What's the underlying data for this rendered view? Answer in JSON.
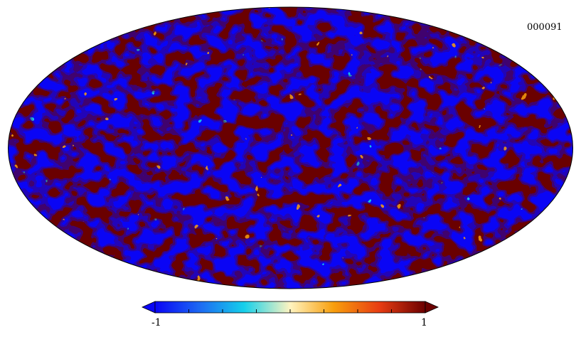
{
  "map": {
    "id_label": "000091",
    "projection": "mollweide",
    "colormap": [
      "#0a05f5",
      "#1d6cf3",
      "#15d0ea",
      "#fff4c0",
      "#f89f0d",
      "#e83d12",
      "#6b0000"
    ]
  },
  "colorbar": {
    "min_label": "-1",
    "max_label": "1",
    "range": [
      -1,
      1
    ],
    "orientation": "horizontal",
    "placement": "bottom",
    "tick_count": 9
  },
  "colors": {
    "low": "#0a05f5",
    "mid_low": "#15d0ea",
    "mid": "#fff4c0",
    "mid_high": "#f89f0d",
    "high": "#6b0000"
  }
}
